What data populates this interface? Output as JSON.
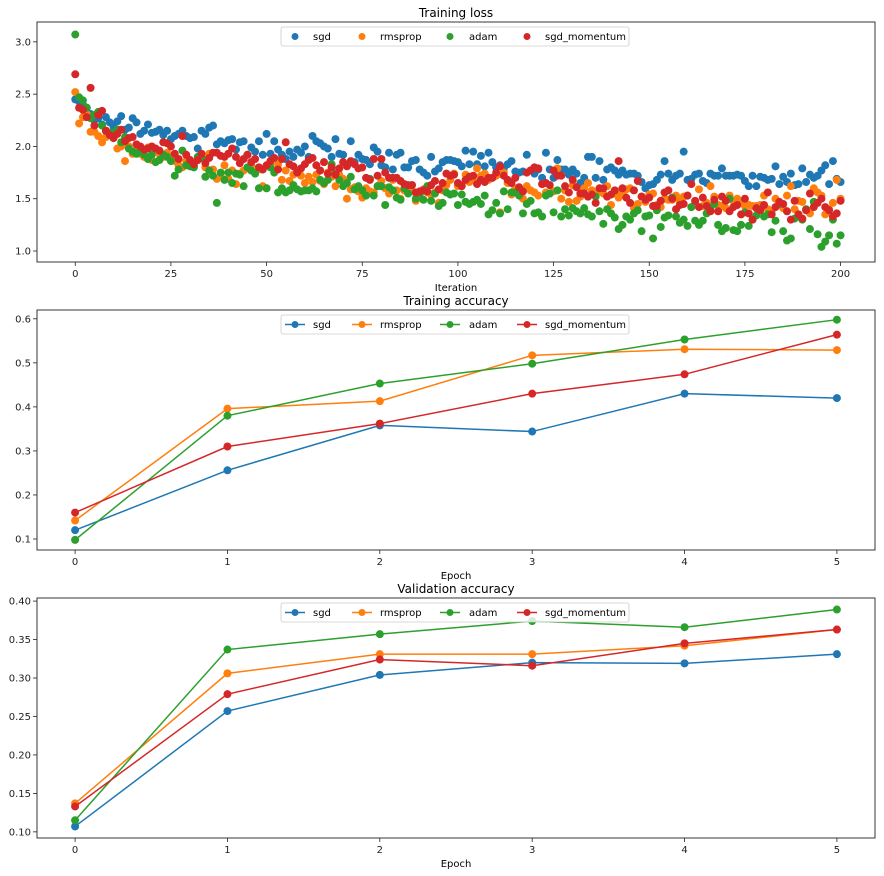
{
  "colors": {
    "sgd": "#1f77b4",
    "rmsprop": "#ff7f0e",
    "adam": "#2ca02c",
    "sgd_momentum": "#d62728"
  },
  "chart_data": [
    {
      "type": "scatter",
      "title": "Training loss",
      "xlabel": "Iteration",
      "ylabel": "",
      "xlim": [
        -10,
        209
      ],
      "ylim": [
        0.895,
        3.19
      ],
      "xticks": [
        0,
        25,
        50,
        75,
        100,
        125,
        150,
        175,
        200
      ],
      "xtick_labels": [
        "0",
        "25",
        "50",
        "75",
        "100",
        "125",
        "150",
        "175",
        "200"
      ],
      "yticks": [
        1.0,
        1.5,
        2.0,
        2.5,
        3.0
      ],
      "ytick_labels": [
        "1.0",
        "1.5",
        "2.0",
        "2.5",
        "3.0"
      ],
      "legend": "top-center",
      "grid": false,
      "series": [
        {
          "name": "sgd",
          "values": [
            2.45,
            2.43,
            2.4,
            2.37,
            2.31,
            2.25,
            2.27,
            2.21,
            2.28,
            2.23,
            2.19,
            2.24,
            2.29,
            2.16,
            2.18,
            2.27,
            2.23,
            2.12,
            2.15,
            2.21,
            2.13,
            2.14,
            2.16,
            2.11,
            2.15,
            2.07,
            2.1,
            2.12,
            2.15,
            2.1,
            2.08,
            2.09,
            1.98,
            2.15,
            2.12,
            2.18,
            2.2,
            2.02,
            2.05,
            2.03,
            2.06,
            2.07,
            1.97,
            2.04,
            2.05,
            1.92,
            1.99,
            1.95,
            2.05,
            1.92,
            2.12,
            1.93,
            2.05,
            1.97,
            1.92,
            1.88,
            1.95,
            1.9,
            1.97,
            1.94,
            2.0,
            1.9,
            2.1,
            2.05,
            2.03,
            2.0,
            1.98,
            1.9,
            2.07,
            1.93,
            1.92,
            1.82,
            2.05,
            1.85,
            1.92,
            1.88,
            1.87,
            1.83,
            1.99,
            1.95,
            1.82,
            1.8,
            1.94,
            1.78,
            1.92,
            1.94,
            1.8,
            1.8,
            1.86,
            1.87,
            1.78,
            1.75,
            1.72,
            1.9,
            1.76,
            1.79,
            1.85,
            1.87,
            1.87,
            1.86,
            1.85,
            1.81,
            1.96,
            1.83,
            1.95,
            1.83,
            1.91,
            1.81,
            1.94,
            1.85,
            1.8,
            1.82,
            1.79,
            1.83,
            1.86,
            1.76,
            1.75,
            1.76,
            1.92,
            1.77,
            1.74,
            1.78,
            1.7,
            1.94,
            1.78,
            1.7,
            1.87,
            1.78,
            1.78,
            1.73,
            1.78,
            1.74,
            1.65,
            1.7,
            1.9,
            1.9,
            1.7,
            1.86,
            1.68,
            1.78,
            1.8,
            1.77,
            1.73,
            1.77,
            1.73,
            1.74,
            1.74,
            1.72,
            1.66,
            1.6,
            1.63,
            1.64,
            1.68,
            1.73,
            1.86,
            1.74,
            1.68,
            1.72,
            1.74,
            1.95,
            1.68,
            1.69,
            1.73,
            1.74,
            1.67,
            1.65,
            1.74,
            1.72,
            1.72,
            1.79,
            1.72,
            1.72,
            1.72,
            1.73,
            1.72,
            1.67,
            1.62,
            1.72,
            1.62,
            1.71,
            1.7,
            1.68,
            1.69,
            1.81,
            1.64,
            1.71,
            1.66,
            1.74,
            1.63,
            1.64,
            1.79,
            1.66,
            1.73,
            1.7,
            1.72,
            1.77,
            1.82,
            1.64,
            1.86,
            1.69,
            1.66
          ]
        },
        {
          "name": "rmsprop",
          "values": [
            2.52,
            2.22,
            2.28,
            2.31,
            2.14,
            2.14,
            2.1,
            2.04,
            2.09,
            2.13,
            2.08,
            1.98,
            2.0,
            1.86,
            2.0,
            1.93,
            1.97,
            1.93,
            1.9,
            1.99,
            1.87,
            1.96,
            1.93,
            1.9,
            1.94,
            1.89,
            1.86,
            1.82,
            1.8,
            1.86,
            1.85,
            1.81,
            1.87,
            1.9,
            1.8,
            1.93,
            1.78,
            1.69,
            1.72,
            1.82,
            1.69,
            1.77,
            1.64,
            1.74,
            1.77,
            1.79,
            1.82,
            1.75,
            1.78,
            1.62,
            1.6,
            1.84,
            1.77,
            1.83,
            1.68,
            1.77,
            1.67,
            1.73,
            1.77,
            1.72,
            1.65,
            1.71,
            1.66,
            1.73,
            1.67,
            1.64,
            1.75,
            1.71,
            1.62,
            1.73,
            1.69,
            1.5,
            1.59,
            1.61,
            1.57,
            1.51,
            1.6,
            1.57,
            1.56,
            1.62,
            1.67,
            1.6,
            1.55,
            1.68,
            1.58,
            1.5,
            1.58,
            1.62,
            1.57,
            1.48,
            1.53,
            1.59,
            1.56,
            1.54,
            1.56,
            1.46,
            1.58,
            1.63,
            1.68,
            1.74,
            1.62,
            1.63,
            1.73,
            1.66,
            1.68,
            1.79,
            1.72,
            1.74,
            1.68,
            1.7,
            1.72,
            1.37,
            1.75,
            1.65,
            1.54,
            1.6,
            1.56,
            1.5,
            1.62,
            1.58,
            1.56,
            1.53,
            1.64,
            1.56,
            1.55,
            1.57,
            1.79,
            1.5,
            1.58,
            1.47,
            1.63,
            1.48,
            1.52,
            1.6,
            1.65,
            1.58,
            1.53,
            1.58,
            1.55,
            1.62,
            1.44,
            1.55,
            1.51,
            1.56,
            1.59,
            1.6,
            1.41,
            1.45,
            1.52,
            1.47,
            1.54,
            1.55,
            1.44,
            1.42,
            1.5,
            1.49,
            1.49,
            1.53,
            1.48,
            1.52,
            1.53,
            1.42,
            1.47,
            1.59,
            1.43,
            1.46,
            1.62,
            1.52,
            1.44,
            1.43,
            1.41,
            1.53,
            1.48,
            1.5,
            1.46,
            1.43,
            1.44,
            1.43,
            1.43,
            1.44,
            1.53,
            1.4,
            1.38,
            1.5,
            1.46,
            1.41,
            1.53,
            1.62,
            1.4,
            1.48,
            1.47,
            1.4,
            1.36,
            1.6,
            1.56,
            1.53,
            1.35,
            1.4,
            1.46,
            1.68,
            1.5
          ]
        },
        {
          "name": "adam",
          "values": [
            3.07,
            2.47,
            2.44,
            2.37,
            2.27,
            2.3,
            2.33,
            2.2,
            2.15,
            2.13,
            2.13,
            2.16,
            2.04,
            2.09,
            1.98,
            1.95,
            1.93,
            1.97,
            1.92,
            1.88,
            1.92,
            1.85,
            1.87,
            1.92,
            1.9,
            1.86,
            1.72,
            1.78,
            1.96,
            1.82,
            1.81,
            1.8,
            1.9,
            1.89,
            1.71,
            1.77,
            1.72,
            1.46,
            1.75,
            1.68,
            1.75,
            1.65,
            1.74,
            1.73,
            1.62,
            1.8,
            1.77,
            1.74,
            1.6,
            1.78,
            1.6,
            1.8,
            1.75,
            1.56,
            1.6,
            1.56,
            1.58,
            1.63,
            1.59,
            1.57,
            1.58,
            1.58,
            1.6,
            1.57,
            1.68,
            1.65,
            1.68,
            1.83,
            1.74,
            1.68,
            1.62,
            1.65,
            1.71,
            1.59,
            1.62,
            1.58,
            1.53,
            1.69,
            1.53,
            1.62,
            1.62,
            1.44,
            1.61,
            1.58,
            1.51,
            1.49,
            1.6,
            1.55,
            1.63,
            1.5,
            1.55,
            1.49,
            1.62,
            1.48,
            1.55,
            1.43,
            1.46,
            1.56,
            1.54,
            1.55,
            1.44,
            1.54,
            1.47,
            1.45,
            1.47,
            1.49,
            1.45,
            1.53,
            1.35,
            1.39,
            1.46,
            1.36,
            1.57,
            1.4,
            1.56,
            1.56,
            1.53,
            1.36,
            1.45,
            1.48,
            1.36,
            1.37,
            1.33,
            1.53,
            1.55,
            1.37,
            1.58,
            1.33,
            1.4,
            1.34,
            1.41,
            1.38,
            1.36,
            1.41,
            1.35,
            1.33,
            1.52,
            1.38,
            1.26,
            1.4,
            1.36,
            1.32,
            1.21,
            1.25,
            1.33,
            1.3,
            1.36,
            1.39,
            1.19,
            1.33,
            1.34,
            1.12,
            1.39,
            1.23,
            1.32,
            1.34,
            1.51,
            1.33,
            1.27,
            1.3,
            1.24,
            1.42,
            1.29,
            1.25,
            1.29,
            1.36,
            1.41,
            1.45,
            1.25,
            1.19,
            1.22,
            1.5,
            1.2,
            1.19,
            1.25,
            1.37,
            1.24,
            1.3,
            1.34,
            1.4,
            1.33,
            1.35,
            1.18,
            1.29,
            1.45,
            1.19,
            1.1,
            1.12,
            1.31,
            1.35,
            1.3,
            1.4,
            1.21,
            1.47,
            1.16,
            1.04,
            1.09,
            1.15,
            1.3,
            1.07,
            1.15
          ]
        },
        {
          "name": "sgd_momentum",
          "values": [
            2.69,
            2.37,
            2.35,
            2.28,
            2.56,
            2.2,
            2.3,
            2.34,
            2.15,
            2.11,
            2.08,
            2.12,
            2.16,
            2.05,
            2.08,
            2.09,
            2.02,
            2.0,
            1.97,
            1.98,
            2.0,
            1.98,
            1.96,
            2.04,
            2.03,
            2.0,
            1.93,
            1.88,
            2.1,
            1.92,
            1.87,
            1.83,
            1.87,
            1.93,
            1.84,
            1.89,
            1.94,
            1.94,
            1.91,
            1.9,
            1.93,
            1.98,
            1.9,
            1.84,
            1.88,
            1.92,
            1.85,
            1.88,
            1.8,
            1.78,
            1.82,
            1.86,
            1.89,
            1.78,
            1.88,
            2.04,
            1.83,
            1.81,
            1.75,
            1.79,
            1.83,
            1.87,
            1.89,
            1.82,
            1.77,
            1.85,
            1.74,
            1.8,
            1.73,
            1.79,
            1.85,
            1.81,
            1.86,
            1.83,
            1.79,
            1.8,
            1.7,
            1.68,
            1.88,
            1.72,
            1.88,
            1.75,
            1.7,
            1.7,
            1.7,
            1.67,
            1.64,
            1.63,
            1.63,
            1.56,
            1.57,
            1.58,
            1.57,
            1.63,
            1.67,
            1.59,
            1.65,
            1.74,
            1.72,
            1.73,
            1.65,
            1.62,
            1.68,
            1.71,
            1.72,
            1.64,
            1.68,
            1.66,
            1.7,
            1.7,
            1.75,
            1.81,
            1.72,
            1.68,
            1.65,
            1.7,
            1.61,
            1.57,
            1.75,
            1.77,
            1.8,
            1.79,
            1.64,
            1.65,
            1.63,
            1.77,
            1.72,
            1.72,
            1.62,
            1.56,
            1.68,
            1.61,
            1.55,
            1.55,
            1.52,
            1.54,
            1.46,
            1.6,
            1.6,
            1.52,
            1.54,
            1.58,
            1.86,
            1.6,
            1.51,
            1.46,
            1.58,
            1.67,
            1.52,
            1.49,
            1.51,
            1.43,
            1.43,
            1.48,
            1.56,
            1.58,
            1.5,
            1.4,
            1.44,
            1.45,
            1.53,
            1.64,
            1.48,
            1.42,
            1.51,
            1.43,
            1.38,
            1.49,
            1.38,
            1.52,
            1.48,
            1.38,
            1.42,
            1.44,
            1.35,
            1.5,
            1.36,
            1.3,
            1.41,
            1.39,
            1.44,
            1.56,
            1.35,
            1.42,
            1.47,
            1.45,
            1.38,
            1.3,
            1.48,
            1.35,
            1.31,
            1.39,
            1.55,
            1.42,
            1.46,
            1.5,
            1.42,
            1.39,
            1.33,
            1.36,
            1.48
          ]
        }
      ]
    },
    {
      "type": "line",
      "title": "Training accuracy",
      "xlabel": "Epoch",
      "ylabel": "",
      "x": [
        0,
        1,
        2,
        3,
        4,
        5
      ],
      "xlim": [
        -0.25,
        5.25
      ],
      "ylim": [
        0.075,
        0.62
      ],
      "xticks": [
        0,
        1,
        2,
        3,
        4,
        5
      ],
      "xtick_labels": [
        "0",
        "1",
        "2",
        "3",
        "4",
        "5"
      ],
      "yticks": [
        0.1,
        0.2,
        0.3,
        0.4,
        0.5,
        0.6
      ],
      "ytick_labels": [
        "0.1",
        "0.2",
        "0.3",
        "0.4",
        "0.5",
        "0.6"
      ],
      "legend": "top-center",
      "grid": false,
      "series": [
        {
          "name": "sgd",
          "values": [
            0.12,
            0.256,
            0.358,
            0.344,
            0.43,
            0.42
          ]
        },
        {
          "name": "rmsprop",
          "values": [
            0.142,
            0.396,
            0.413,
            0.517,
            0.531,
            0.529
          ]
        },
        {
          "name": "adam",
          "values": [
            0.098,
            0.38,
            0.453,
            0.498,
            0.553,
            0.598
          ]
        },
        {
          "name": "sgd_momentum",
          "values": [
            0.16,
            0.31,
            0.362,
            0.43,
            0.474,
            0.564
          ]
        }
      ]
    },
    {
      "type": "line",
      "title": "Validation accuracy",
      "xlabel": "Epoch",
      "ylabel": "",
      "x": [
        0,
        1,
        2,
        3,
        4,
        5
      ],
      "xlim": [
        -0.25,
        5.25
      ],
      "ylim": [
        0.092,
        0.404
      ],
      "xticks": [
        0,
        1,
        2,
        3,
        4,
        5
      ],
      "xtick_labels": [
        "0",
        "1",
        "2",
        "3",
        "4",
        "5"
      ],
      "yticks": [
        0.1,
        0.15,
        0.2,
        0.25,
        0.3,
        0.35,
        0.4
      ],
      "ytick_labels": [
        "0.10",
        "0.15",
        "0.20",
        "0.25",
        "0.30",
        "0.35",
        "0.40"
      ],
      "legend": "top-center",
      "grid": false,
      "series": [
        {
          "name": "sgd",
          "values": [
            0.107,
            0.257,
            0.304,
            0.32,
            0.319,
            0.331
          ]
        },
        {
          "name": "rmsprop",
          "values": [
            0.137,
            0.306,
            0.331,
            0.331,
            0.342,
            0.363
          ]
        },
        {
          "name": "adam",
          "values": [
            0.115,
            0.337,
            0.357,
            0.374,
            0.366,
            0.389
          ]
        },
        {
          "name": "sgd_momentum",
          "values": [
            0.133,
            0.279,
            0.324,
            0.316,
            0.345,
            0.363
          ]
        }
      ]
    }
  ]
}
